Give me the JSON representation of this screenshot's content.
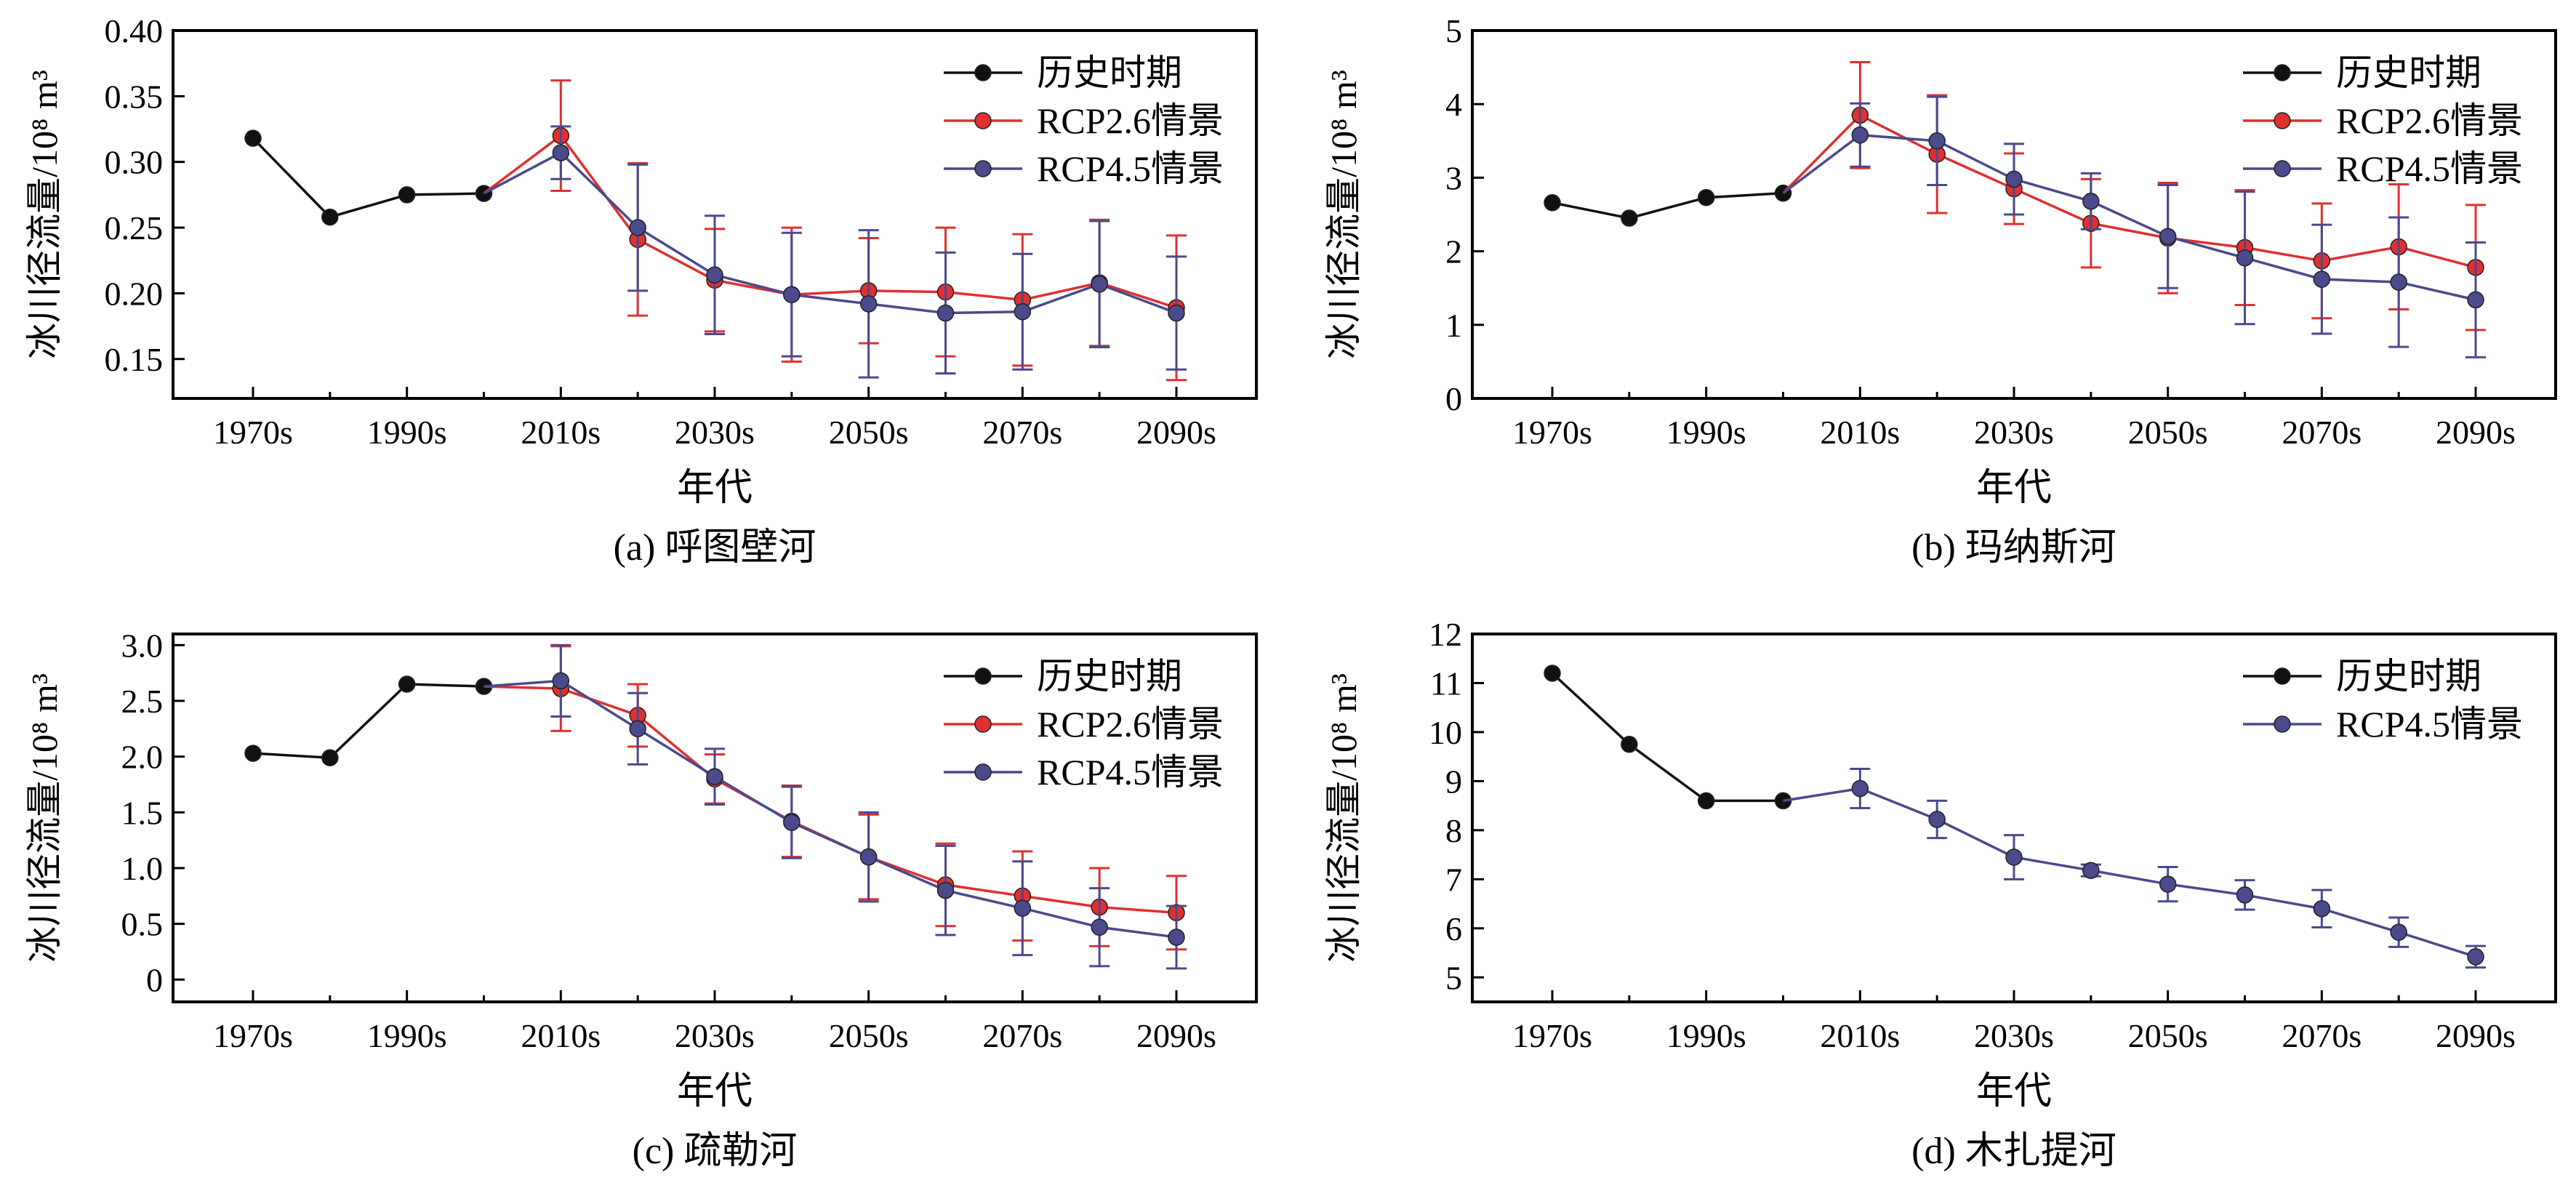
{
  "chart_data": [
    {
      "type": "line",
      "panel": "a",
      "caption": "(a) 呼图壁河",
      "xlabel": "年代",
      "ylabel": "冰川径流量/10⁸ m³",
      "ylim": [
        0.12,
        0.4
      ],
      "yticks": [
        0.15,
        0.2,
        0.25,
        0.3,
        0.35,
        0.4
      ],
      "ytick_labels": [
        "0.15",
        "0.20",
        "0.25",
        "0.30",
        "0.35",
        "0.40"
      ],
      "categories": [
        "1970s",
        "1980s",
        "1990s",
        "2000s",
        "2010s",
        "2020s",
        "2030s",
        "2040s",
        "2050s",
        "2060s",
        "2070s",
        "2080s",
        "2090s"
      ],
      "xtick_labels": [
        "1970s",
        "1990s",
        "2010s",
        "2030s",
        "2050s",
        "2070s",
        "2090s"
      ],
      "legend_position": "top-right",
      "series": [
        {
          "name": "历史时期",
          "color": "#111111",
          "start": 0,
          "values": [
            0.318,
            0.258,
            0.275,
            0.276,
            null,
            null,
            null,
            null,
            null,
            null,
            null,
            null,
            null
          ]
        },
        {
          "name": "RCP2.6情景",
          "color": "#e03030",
          "start": 3,
          "values": [
            null,
            null,
            null,
            0.276,
            0.32,
            0.241,
            0.21,
            0.199,
            0.202,
            0.201,
            0.195,
            0.208,
            0.189
          ],
          "err": [
            null,
            null,
            null,
            null,
            0.042,
            0.058,
            0.039,
            0.051,
            0.04,
            0.049,
            0.05,
            0.048,
            0.055
          ]
        },
        {
          "name": "RCP4.5情景",
          "color": "#4a4a8c",
          "start": 3,
          "values": [
            null,
            null,
            null,
            0.276,
            0.307,
            0.25,
            0.214,
            0.199,
            0.192,
            0.185,
            0.186,
            0.207,
            0.185
          ],
          "err": [
            null,
            null,
            null,
            null,
            0.02,
            0.048,
            0.045,
            0.047,
            0.056,
            0.046,
            0.044,
            0.048,
            0.043
          ]
        }
      ]
    },
    {
      "type": "line",
      "panel": "b",
      "caption": "(b) 玛纳斯河",
      "xlabel": "年代",
      "ylabel": "冰川径流量/10⁸ m³",
      "ylim": [
        0,
        5
      ],
      "yticks": [
        0,
        1,
        2,
        3,
        4,
        5
      ],
      "ytick_labels": [
        "0",
        "1",
        "2",
        "3",
        "4",
        "5"
      ],
      "categories": [
        "1970s",
        "1980s",
        "1990s",
        "2000s",
        "2010s",
        "2020s",
        "2030s",
        "2040s",
        "2050s",
        "2060s",
        "2070s",
        "2080s",
        "2090s"
      ],
      "xtick_labels": [
        "1970s",
        "1990s",
        "2010s",
        "2030s",
        "2050s",
        "2070s",
        "2090s"
      ],
      "legend_position": "top-right",
      "series": [
        {
          "name": "历史时期",
          "color": "#111111",
          "start": 0,
          "values": [
            2.66,
            2.45,
            2.73,
            2.79,
            null,
            null,
            null,
            null,
            null,
            null,
            null,
            null,
            null
          ]
        },
        {
          "name": "RCP2.6情景",
          "color": "#e03030",
          "start": 3,
          "values": [
            null,
            null,
            null,
            2.79,
            3.85,
            3.32,
            2.85,
            2.38,
            2.18,
            2.05,
            1.87,
            2.06,
            1.78
          ],
          "err": [
            null,
            null,
            null,
            null,
            0.72,
            0.8,
            0.48,
            0.6,
            0.75,
            0.78,
            0.78,
            0.85,
            0.85
          ]
        },
        {
          "name": "RCP4.5情景",
          "color": "#4a4a8c",
          "start": 3,
          "values": [
            null,
            null,
            null,
            2.79,
            3.58,
            3.5,
            2.98,
            2.68,
            2.2,
            1.91,
            1.62,
            1.58,
            1.34
          ],
          "err": [
            null,
            null,
            null,
            null,
            0.43,
            0.6,
            0.48,
            0.38,
            0.7,
            0.9,
            0.74,
            0.88,
            0.78
          ]
        }
      ]
    },
    {
      "type": "line",
      "panel": "c",
      "caption": "(c) 疏勒河",
      "xlabel": "年代",
      "ylabel": "冰川径流量/10⁸ m³",
      "ylim": [
        -0.2,
        3.1
      ],
      "yticks": [
        0,
        0.5,
        1.0,
        1.5,
        2.0,
        2.5,
        3.0
      ],
      "ytick_labels": [
        "0",
        "0.5",
        "1.0",
        "1.5",
        "2.0",
        "2.5",
        "3.0"
      ],
      "categories": [
        "1970s",
        "1980s",
        "1990s",
        "2000s",
        "2010s",
        "2020s",
        "2030s",
        "2040s",
        "2050s",
        "2060s",
        "2070s",
        "2080s",
        "2090s"
      ],
      "xtick_labels": [
        "1970s",
        "1990s",
        "2010s",
        "2030s",
        "2050s",
        "2070s",
        "2090s"
      ],
      "legend_position": "top-right",
      "series": [
        {
          "name": "历史时期",
          "color": "#111111",
          "start": 0,
          "values": [
            2.03,
            1.99,
            2.65,
            2.63,
            null,
            null,
            null,
            null,
            null,
            null,
            null,
            null,
            null
          ]
        },
        {
          "name": "RCP2.6情景",
          "color": "#e03030",
          "start": 3,
          "values": [
            null,
            null,
            null,
            2.63,
            2.61,
            2.37,
            1.8,
            1.42,
            1.1,
            0.85,
            0.75,
            0.65,
            0.6
          ],
          "err": [
            null,
            null,
            null,
            null,
            0.38,
            0.28,
            0.22,
            0.32,
            0.38,
            0.37,
            0.4,
            0.35,
            0.33
          ]
        },
        {
          "name": "RCP4.5情景",
          "color": "#4a4a8c",
          "start": 3,
          "values": [
            null,
            null,
            null,
            2.63,
            2.68,
            2.25,
            1.82,
            1.41,
            1.1,
            0.8,
            0.64,
            0.47,
            0.38
          ],
          "err": [
            null,
            null,
            null,
            null,
            0.32,
            0.32,
            0.25,
            0.32,
            0.4,
            0.4,
            0.42,
            0.35,
            0.28
          ]
        }
      ]
    },
    {
      "type": "line",
      "panel": "d",
      "caption": "(d) 木扎提河",
      "xlabel": "年代",
      "ylabel": "冰川径流量/10⁸ m³",
      "ylim": [
        4.5,
        12
      ],
      "yticks": [
        5,
        6,
        7,
        8,
        9,
        10,
        11,
        12
      ],
      "ytick_labels": [
        "5",
        "6",
        "7",
        "8",
        "9",
        "10",
        "11",
        "12"
      ],
      "categories": [
        "1970s",
        "1980s",
        "1990s",
        "2000s",
        "2010s",
        "2020s",
        "2030s",
        "2040s",
        "2050s",
        "2060s",
        "2070s",
        "2080s",
        "2090s"
      ],
      "xtick_labels": [
        "1970s",
        "1990s",
        "2010s",
        "2030s",
        "2050s",
        "2070s",
        "2090s"
      ],
      "legend_position": "top-right",
      "series": [
        {
          "name": "历史时期",
          "color": "#111111",
          "start": 0,
          "values": [
            11.2,
            9.75,
            8.6,
            8.6,
            null,
            null,
            null,
            null,
            null,
            null,
            null,
            null,
            null
          ]
        },
        {
          "name": "RCP4.5情景",
          "color": "#4a4a8c",
          "start": 3,
          "values": [
            null,
            null,
            null,
            8.6,
            8.85,
            8.22,
            7.45,
            7.18,
            6.9,
            6.68,
            6.4,
            5.92,
            5.42
          ],
          "err": [
            null,
            null,
            null,
            null,
            0.4,
            0.38,
            0.45,
            0.12,
            0.35,
            0.3,
            0.38,
            0.3,
            0.22
          ]
        }
      ]
    }
  ]
}
